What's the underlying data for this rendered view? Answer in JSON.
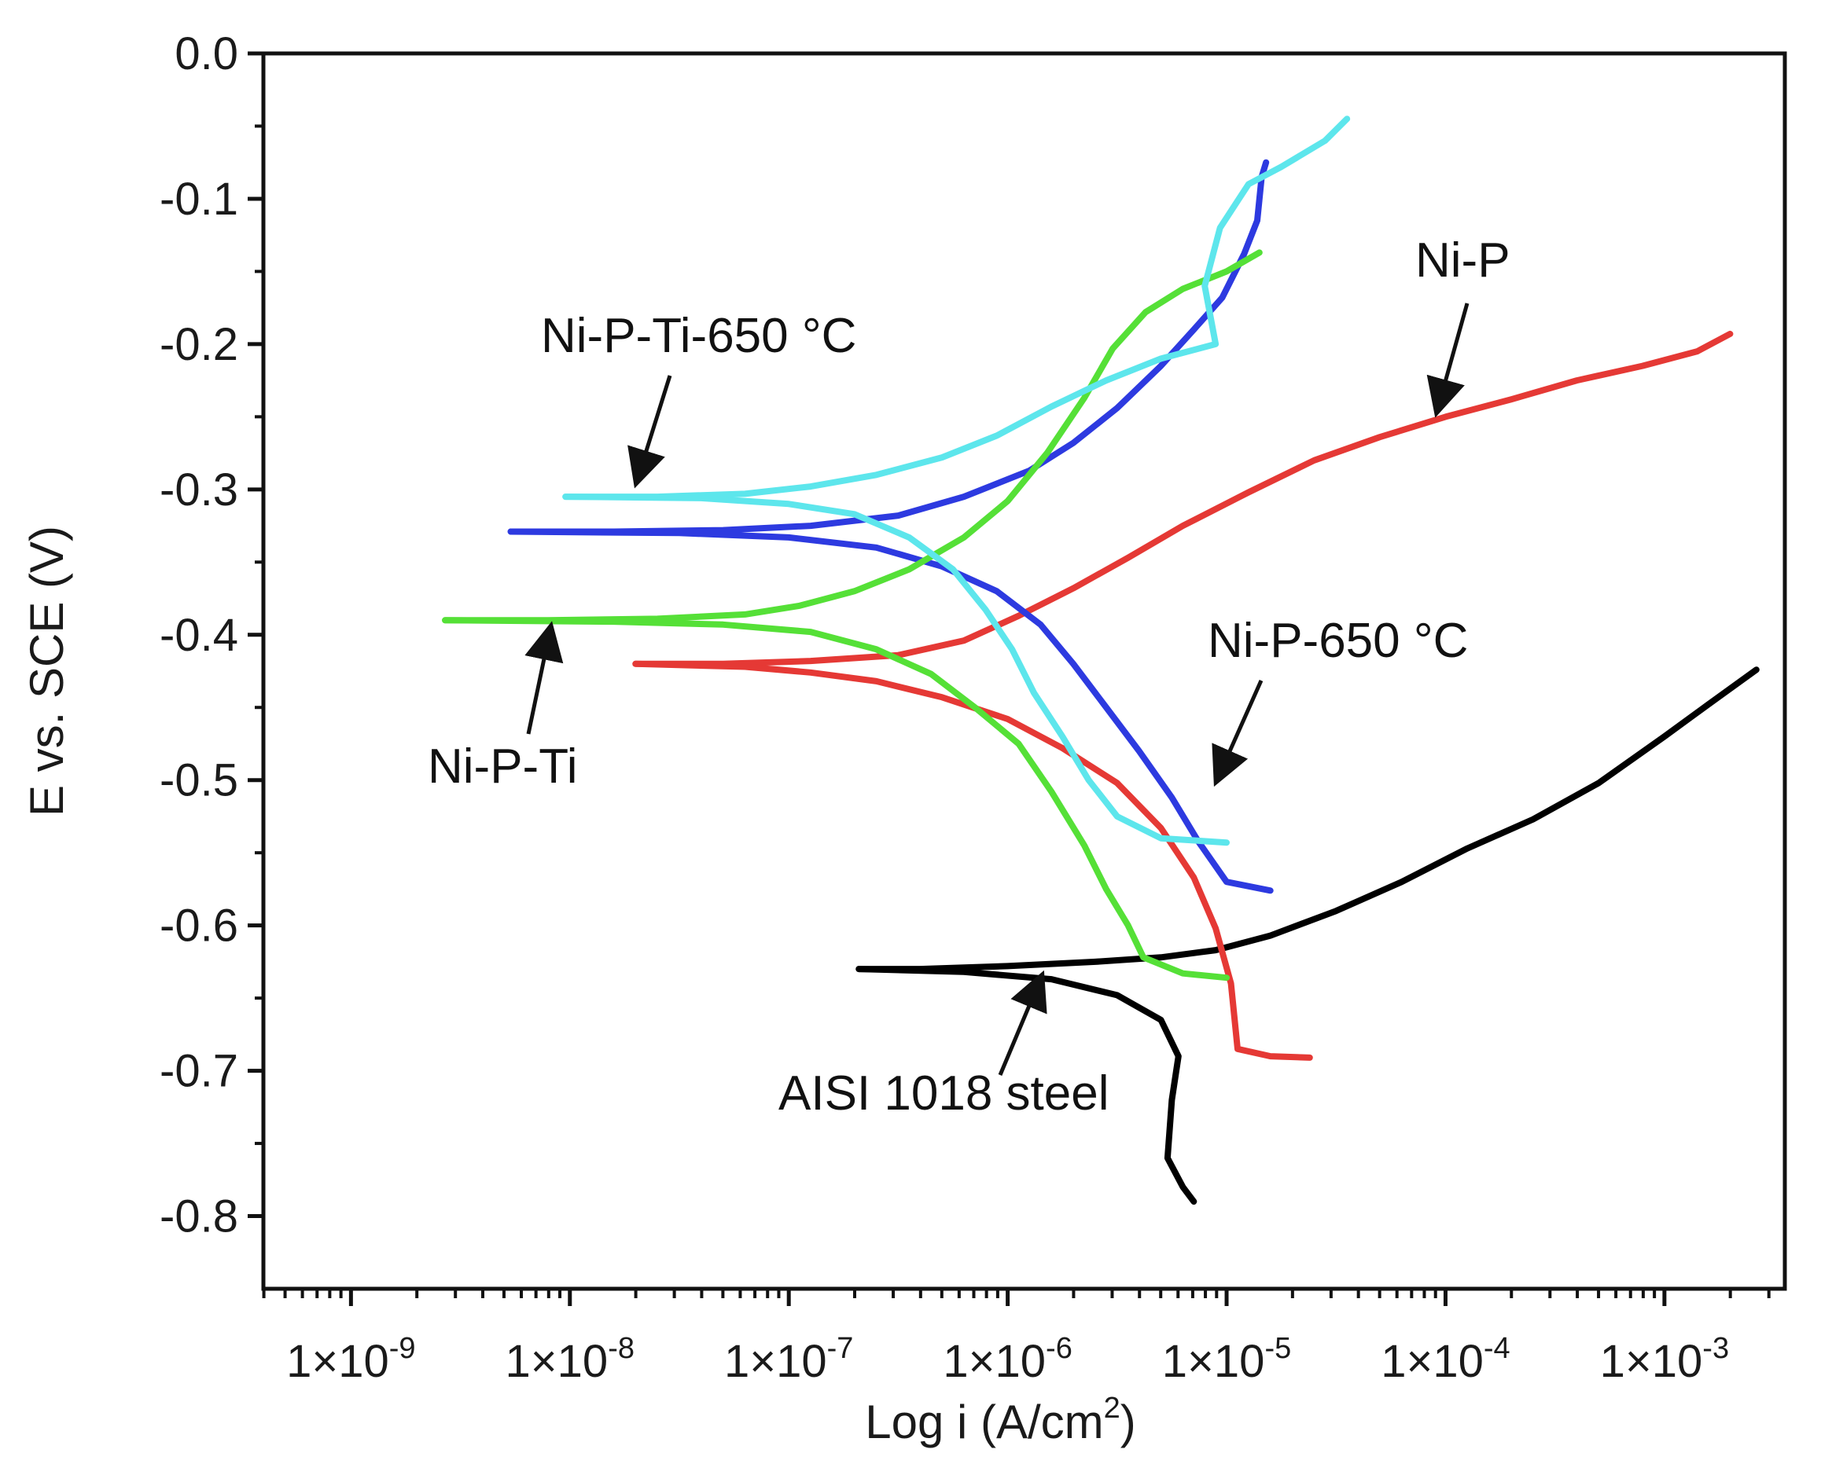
{
  "chart_data": {
    "type": "line",
    "title": "",
    "xlabel": "Log i (A/cm",
    "xlabel_sup": "2",
    "xlabel_close": ")",
    "ylabel": "E vs. SCE (V)",
    "xscale": "log",
    "xlim_log10": [
      -9.4,
      -2.45
    ],
    "ylim": [
      -0.85,
      0.0
    ],
    "grid": false,
    "y_ticks": [
      {
        "value": 0.0,
        "label": "0.0"
      },
      {
        "value": -0.1,
        "label": "-0.1"
      },
      {
        "value": -0.2,
        "label": "-0.2"
      },
      {
        "value": -0.3,
        "label": "-0.3"
      },
      {
        "value": -0.4,
        "label": "-0.4"
      },
      {
        "value": -0.5,
        "label": "-0.5"
      },
      {
        "value": -0.6,
        "label": "-0.6"
      },
      {
        "value": -0.7,
        "label": "-0.7"
      },
      {
        "value": -0.8,
        "label": "-0.8"
      }
    ],
    "x_ticks": [
      {
        "exp": -9,
        "base": "1×10",
        "sup": "-9"
      },
      {
        "exp": -8,
        "base": "1×10",
        "sup": "-8"
      },
      {
        "exp": -7,
        "base": "1×10",
        "sup": "-7"
      },
      {
        "exp": -6,
        "base": "1×10",
        "sup": "-6"
      },
      {
        "exp": -5,
        "base": "1×10",
        "sup": "-5"
      },
      {
        "exp": -4,
        "base": "1×10",
        "sup": "-4"
      },
      {
        "exp": -3,
        "base": "1×10",
        "sup": "-3"
      }
    ],
    "series": [
      {
        "name": "AISI 1018 steel",
        "color": "#000000",
        "anodic": [
          [
            -6.68,
            -0.63
          ],
          [
            -6.4,
            -0.63
          ],
          [
            -6.0,
            -0.628
          ],
          [
            -5.6,
            -0.625
          ],
          [
            -5.3,
            -0.622
          ],
          [
            -5.05,
            -0.617
          ],
          [
            -4.8,
            -0.607
          ],
          [
            -4.5,
            -0.59
          ],
          [
            -4.2,
            -0.57
          ],
          [
            -3.9,
            -0.547
          ],
          [
            -3.6,
            -0.527
          ],
          [
            -3.3,
            -0.502
          ],
          [
            -3.0,
            -0.47
          ],
          [
            -2.8,
            -0.448
          ],
          [
            -2.58,
            -0.424
          ]
        ],
        "cathodic": [
          [
            -6.68,
            -0.63
          ],
          [
            -6.2,
            -0.632
          ],
          [
            -5.8,
            -0.637
          ],
          [
            -5.5,
            -0.648
          ],
          [
            -5.3,
            -0.665
          ],
          [
            -5.22,
            -0.69
          ],
          [
            -5.25,
            -0.72
          ],
          [
            -5.27,
            -0.76
          ],
          [
            -5.2,
            -0.78
          ],
          [
            -5.15,
            -0.79
          ]
        ]
      },
      {
        "name": "Ni-P",
        "color": "#e53935",
        "anodic": [
          [
            -7.7,
            -0.42
          ],
          [
            -7.3,
            -0.42
          ],
          [
            -6.9,
            -0.418
          ],
          [
            -6.5,
            -0.414
          ],
          [
            -6.2,
            -0.404
          ],
          [
            -5.95,
            -0.387
          ],
          [
            -5.7,
            -0.368
          ],
          [
            -5.45,
            -0.347
          ],
          [
            -5.2,
            -0.325
          ],
          [
            -4.9,
            -0.302
          ],
          [
            -4.6,
            -0.28
          ],
          [
            -4.3,
            -0.264
          ],
          [
            -4.0,
            -0.25
          ],
          [
            -3.7,
            -0.238
          ],
          [
            -3.4,
            -0.225
          ],
          [
            -3.1,
            -0.215
          ],
          [
            -2.85,
            -0.205
          ],
          [
            -2.7,
            -0.193
          ]
        ],
        "cathodic": [
          [
            -7.7,
            -0.42
          ],
          [
            -7.2,
            -0.422
          ],
          [
            -6.9,
            -0.426
          ],
          [
            -6.6,
            -0.432
          ],
          [
            -6.3,
            -0.443
          ],
          [
            -6.0,
            -0.458
          ],
          [
            -5.75,
            -0.478
          ],
          [
            -5.5,
            -0.502
          ],
          [
            -5.3,
            -0.533
          ],
          [
            -5.15,
            -0.567
          ],
          [
            -5.05,
            -0.602
          ],
          [
            -4.98,
            -0.64
          ],
          [
            -4.95,
            -0.685
          ],
          [
            -4.8,
            -0.69
          ],
          [
            -4.62,
            -0.691
          ]
        ]
      },
      {
        "name": "Ni-P-650 °C",
        "color": "#2d3ae0",
        "anodic": [
          [
            -8.27,
            -0.329
          ],
          [
            -7.8,
            -0.329
          ],
          [
            -7.3,
            -0.328
          ],
          [
            -6.9,
            -0.325
          ],
          [
            -6.5,
            -0.318
          ],
          [
            -6.2,
            -0.305
          ],
          [
            -5.9,
            -0.287
          ],
          [
            -5.7,
            -0.268
          ],
          [
            -5.5,
            -0.244
          ],
          [
            -5.3,
            -0.215
          ],
          [
            -5.15,
            -0.19
          ],
          [
            -5.02,
            -0.168
          ],
          [
            -4.92,
            -0.138
          ],
          [
            -4.86,
            -0.115
          ],
          [
            -4.84,
            -0.085
          ],
          [
            -4.82,
            -0.075
          ]
        ],
        "cathodic": [
          [
            -8.27,
            -0.329
          ],
          [
            -7.5,
            -0.33
          ],
          [
            -7.0,
            -0.333
          ],
          [
            -6.6,
            -0.34
          ],
          [
            -6.3,
            -0.353
          ],
          [
            -6.05,
            -0.37
          ],
          [
            -5.85,
            -0.393
          ],
          [
            -5.7,
            -0.42
          ],
          [
            -5.55,
            -0.45
          ],
          [
            -5.4,
            -0.48
          ],
          [
            -5.25,
            -0.512
          ],
          [
            -5.13,
            -0.542
          ],
          [
            -5.0,
            -0.57
          ],
          [
            -4.8,
            -0.576
          ]
        ]
      },
      {
        "name": "Ni-P-Ti",
        "color": "#55e037",
        "anodic": [
          [
            -8.57,
            -0.39
          ],
          [
            -8.1,
            -0.39
          ],
          [
            -7.6,
            -0.389
          ],
          [
            -7.2,
            -0.386
          ],
          [
            -6.95,
            -0.38
          ],
          [
            -6.7,
            -0.37
          ],
          [
            -6.45,
            -0.355
          ],
          [
            -6.2,
            -0.333
          ],
          [
            -6.0,
            -0.308
          ],
          [
            -5.82,
            -0.275
          ],
          [
            -5.65,
            -0.237
          ],
          [
            -5.52,
            -0.203
          ],
          [
            -5.37,
            -0.178
          ],
          [
            -5.2,
            -0.162
          ],
          [
            -5.0,
            -0.15
          ],
          [
            -4.85,
            -0.137
          ]
        ],
        "cathodic": [
          [
            -8.57,
            -0.39
          ],
          [
            -7.8,
            -0.391
          ],
          [
            -7.3,
            -0.393
          ],
          [
            -6.9,
            -0.398
          ],
          [
            -6.6,
            -0.41
          ],
          [
            -6.35,
            -0.427
          ],
          [
            -6.15,
            -0.45
          ],
          [
            -5.95,
            -0.475
          ],
          [
            -5.8,
            -0.508
          ],
          [
            -5.65,
            -0.545
          ],
          [
            -5.55,
            -0.575
          ],
          [
            -5.45,
            -0.6
          ],
          [
            -5.38,
            -0.622
          ],
          [
            -5.2,
            -0.633
          ],
          [
            -5.0,
            -0.636
          ]
        ]
      },
      {
        "name": "Ni-P-Ti-650 °C",
        "color": "#5de6ec",
        "anodic": [
          [
            -8.02,
            -0.305
          ],
          [
            -7.6,
            -0.305
          ],
          [
            -7.2,
            -0.303
          ],
          [
            -6.9,
            -0.298
          ],
          [
            -6.6,
            -0.29
          ],
          [
            -6.3,
            -0.278
          ],
          [
            -6.05,
            -0.263
          ],
          [
            -5.8,
            -0.243
          ],
          [
            -5.55,
            -0.225
          ],
          [
            -5.3,
            -0.21
          ],
          [
            -5.05,
            -0.2
          ],
          [
            -5.1,
            -0.16
          ],
          [
            -5.03,
            -0.12
          ],
          [
            -4.9,
            -0.09
          ],
          [
            -4.75,
            -0.078
          ],
          [
            -4.55,
            -0.06
          ],
          [
            -4.45,
            -0.045
          ]
        ],
        "cathodic": [
          [
            -8.02,
            -0.305
          ],
          [
            -7.4,
            -0.306
          ],
          [
            -7.0,
            -0.31
          ],
          [
            -6.7,
            -0.317
          ],
          [
            -6.45,
            -0.333
          ],
          [
            -6.25,
            -0.355
          ],
          [
            -6.1,
            -0.383
          ],
          [
            -5.98,
            -0.41
          ],
          [
            -5.88,
            -0.44
          ],
          [
            -5.75,
            -0.47
          ],
          [
            -5.63,
            -0.5
          ],
          [
            -5.5,
            -0.525
          ],
          [
            -5.3,
            -0.54
          ],
          [
            -5.0,
            -0.543
          ]
        ]
      }
    ],
    "annotations": [
      {
        "text": "Ni-P-Ti-650 °C",
        "points_to": "Ni-P-Ti-650 °C"
      },
      {
        "text": "Ni-P",
        "points_to": "Ni-P"
      },
      {
        "text": "Ni-P-650 °C",
        "points_to": "Ni-P-650 °C"
      },
      {
        "text": "Ni-P-Ti",
        "points_to": "Ni-P-Ti"
      },
      {
        "text": "AISI 1018 steel",
        "points_to": "AISI 1018 steel"
      }
    ]
  }
}
